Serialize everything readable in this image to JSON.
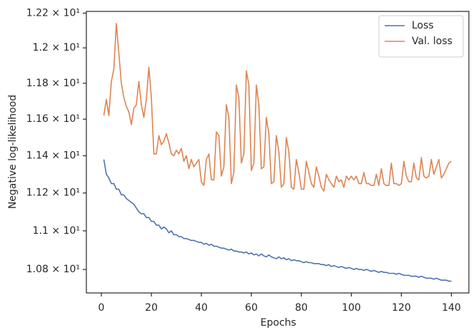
{
  "chart_data": {
    "type": "line",
    "xlabel": "Epochs",
    "ylabel": "Negative log-likelihood",
    "yscale": "log",
    "grid": false,
    "legend": "upper right",
    "x": [
      1,
      2,
      3,
      4,
      5,
      6,
      7,
      8,
      9,
      10,
      11,
      12,
      13,
      14,
      15,
      16,
      17,
      18,
      19,
      20,
      21,
      22,
      23,
      24,
      25,
      26,
      27,
      28,
      29,
      30,
      31,
      32,
      33,
      34,
      35,
      36,
      37,
      38,
      39,
      40,
      41,
      42,
      43,
      44,
      45,
      46,
      47,
      48,
      49,
      50,
      51,
      52,
      53,
      54,
      55,
      56,
      57,
      58,
      59,
      60,
      61,
      62,
      63,
      64,
      65,
      66,
      67,
      68,
      69,
      70,
      71,
      72,
      73,
      74,
      75,
      76,
      77,
      78,
      79,
      80,
      81,
      82,
      83,
      84,
      85,
      86,
      87,
      88,
      89,
      90,
      91,
      92,
      93,
      94,
      95,
      96,
      97,
      98,
      99,
      100,
      101,
      102,
      103,
      104,
      105,
      106,
      107,
      108,
      109,
      110,
      111,
      112,
      113,
      114,
      115,
      116,
      117,
      118,
      119,
      120,
      121,
      122,
      123,
      124,
      125,
      126,
      127,
      128,
      129,
      130,
      131,
      132,
      133,
      134,
      135,
      136,
      137,
      138,
      139,
      140
    ],
    "series": [
      {
        "name": "Loss",
        "color": "#4c72b0",
        "values": [
          11.38,
          11.3,
          11.28,
          11.25,
          11.25,
          11.22,
          11.22,
          11.19,
          11.19,
          11.17,
          11.16,
          11.15,
          11.14,
          11.12,
          11.1,
          11.09,
          11.09,
          11.07,
          11.07,
          11.05,
          11.05,
          11.03,
          11.03,
          11.01,
          11.02,
          11.01,
          10.99,
          11.0,
          10.98,
          10.98,
          10.97,
          10.97,
          10.96,
          10.96,
          10.955,
          10.95,
          10.95,
          10.945,
          10.94,
          10.94,
          10.93,
          10.935,
          10.925,
          10.93,
          10.92,
          10.92,
          10.915,
          10.91,
          10.91,
          10.905,
          10.9,
          10.905,
          10.895,
          10.895,
          10.89,
          10.89,
          10.885,
          10.89,
          10.88,
          10.885,
          10.875,
          10.88,
          10.87,
          10.88,
          10.87,
          10.865,
          10.875,
          10.865,
          10.86,
          10.855,
          10.865,
          10.855,
          10.86,
          10.85,
          10.855,
          10.845,
          10.85,
          10.845,
          10.845,
          10.84,
          10.835,
          10.84,
          10.835,
          10.835,
          10.83,
          10.83,
          10.83,
          10.825,
          10.825,
          10.82,
          10.825,
          10.815,
          10.82,
          10.815,
          10.81,
          10.815,
          10.81,
          10.805,
          10.81,
          10.805,
          10.8,
          10.805,
          10.8,
          10.8,
          10.795,
          10.8,
          10.795,
          10.79,
          10.795,
          10.79,
          10.785,
          10.79,
          10.785,
          10.785,
          10.78,
          10.78,
          10.78,
          10.775,
          10.78,
          10.775,
          10.77,
          10.77,
          10.77,
          10.765,
          10.765,
          10.765,
          10.76,
          10.765,
          10.76,
          10.755,
          10.755,
          10.755,
          10.75,
          10.755,
          10.75,
          10.745,
          10.745,
          10.745,
          10.74,
          10.74
        ]
      },
      {
        "name": "Val. loss",
        "color": "#dd8452",
        "values": [
          11.62,
          11.71,
          11.62,
          11.81,
          11.88,
          12.14,
          11.97,
          11.8,
          11.72,
          11.67,
          11.64,
          11.57,
          11.66,
          11.68,
          11.81,
          11.68,
          11.61,
          11.71,
          11.89,
          11.72,
          11.41,
          11.41,
          11.51,
          11.46,
          11.48,
          11.52,
          11.47,
          11.41,
          11.4,
          11.43,
          11.41,
          11.44,
          11.37,
          11.4,
          11.33,
          11.38,
          11.34,
          11.36,
          11.38,
          11.26,
          11.24,
          11.38,
          11.41,
          11.27,
          11.27,
          11.53,
          11.51,
          11.29,
          11.34,
          11.68,
          11.61,
          11.25,
          11.31,
          11.79,
          11.72,
          11.36,
          11.41,
          11.87,
          11.79,
          11.32,
          11.36,
          11.79,
          11.68,
          11.33,
          11.34,
          11.61,
          11.52,
          11.25,
          11.26,
          11.51,
          11.42,
          11.23,
          11.25,
          11.5,
          11.42,
          11.23,
          11.22,
          11.38,
          11.31,
          11.22,
          11.22,
          11.37,
          11.31,
          11.25,
          11.23,
          11.34,
          11.29,
          11.23,
          11.21,
          11.3,
          11.27,
          11.25,
          11.23,
          11.29,
          11.26,
          11.27,
          11.23,
          11.29,
          11.27,
          11.29,
          11.27,
          11.29,
          11.25,
          11.25,
          11.31,
          11.25,
          11.25,
          11.24,
          11.24,
          11.3,
          11.24,
          11.33,
          11.25,
          11.24,
          11.24,
          11.36,
          11.25,
          11.25,
          11.24,
          11.25,
          11.37,
          11.29,
          11.26,
          11.26,
          11.36,
          11.28,
          11.27,
          11.39,
          11.29,
          11.28,
          11.29,
          11.38,
          11.3,
          11.34,
          11.38,
          11.28,
          11.3,
          11.33,
          11.36,
          11.37
        ]
      }
    ],
    "xlim": [
      -6,
      147
    ],
    "xticks": [
      0,
      20,
      40,
      60,
      80,
      100,
      120,
      140
    ],
    "ylim": [
      10.68,
      12.21
    ],
    "yticks": [
      {
        "value": 10.8,
        "label": "1.08 × 10¹"
      },
      {
        "value": 11.0,
        "label": "1.1 × 10¹"
      },
      {
        "value": 11.2,
        "label": "1.12 × 10¹"
      },
      {
        "value": 11.4,
        "label": "1.14 × 10¹"
      },
      {
        "value": 11.6,
        "label": "1.16 × 10¹"
      },
      {
        "value": 11.8,
        "label": "1.18 × 10¹"
      },
      {
        "value": 12.0,
        "label": "1.2 × 10¹"
      },
      {
        "value": 12.2,
        "label": "1.22 × 10¹"
      }
    ]
  }
}
